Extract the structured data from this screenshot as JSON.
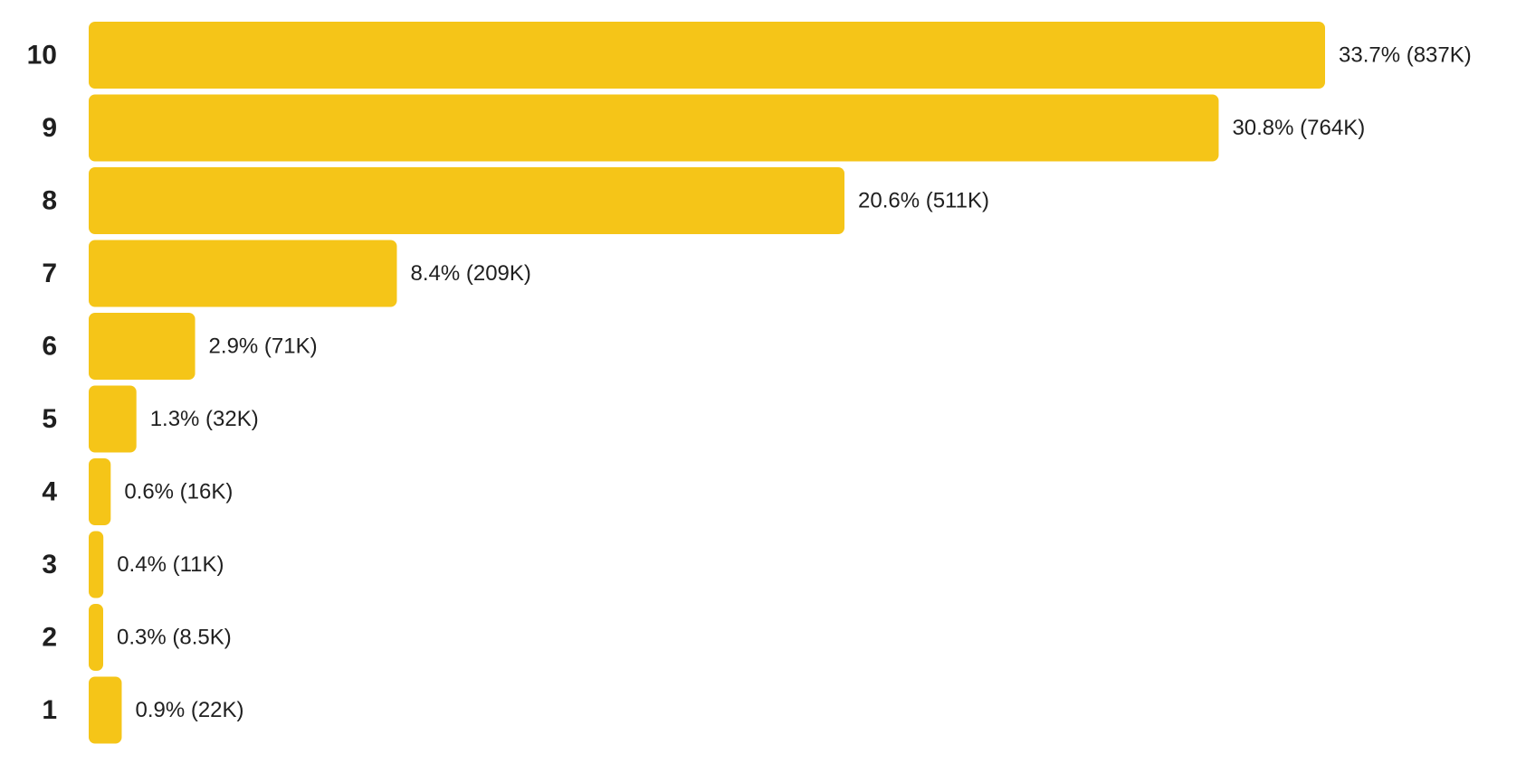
{
  "colors": {
    "bar": "#F5C518",
    "text": "#1f1f1f",
    "background": "#ffffff"
  },
  "chart_data": {
    "type": "bar",
    "orientation": "horizontal",
    "categories": [
      "10",
      "9",
      "8",
      "7",
      "6",
      "5",
      "4",
      "3",
      "2",
      "1"
    ],
    "values": [
      33.7,
      30.8,
      20.6,
      8.4,
      2.9,
      1.3,
      0.6,
      0.4,
      0.3,
      0.9
    ],
    "value_labels": [
      "33.7% (837K)",
      "30.8% (764K)",
      "20.6% (511K)",
      "8.4% (209K)",
      "2.9% (71K)",
      "1.3% (32K)",
      "0.6% (16K)",
      "0.4% (11K)",
      "0.3% (8.5K)",
      "0.9% (22K)"
    ],
    "xlim": [
      0,
      33.7
    ],
    "grid": false,
    "legend": "none"
  }
}
